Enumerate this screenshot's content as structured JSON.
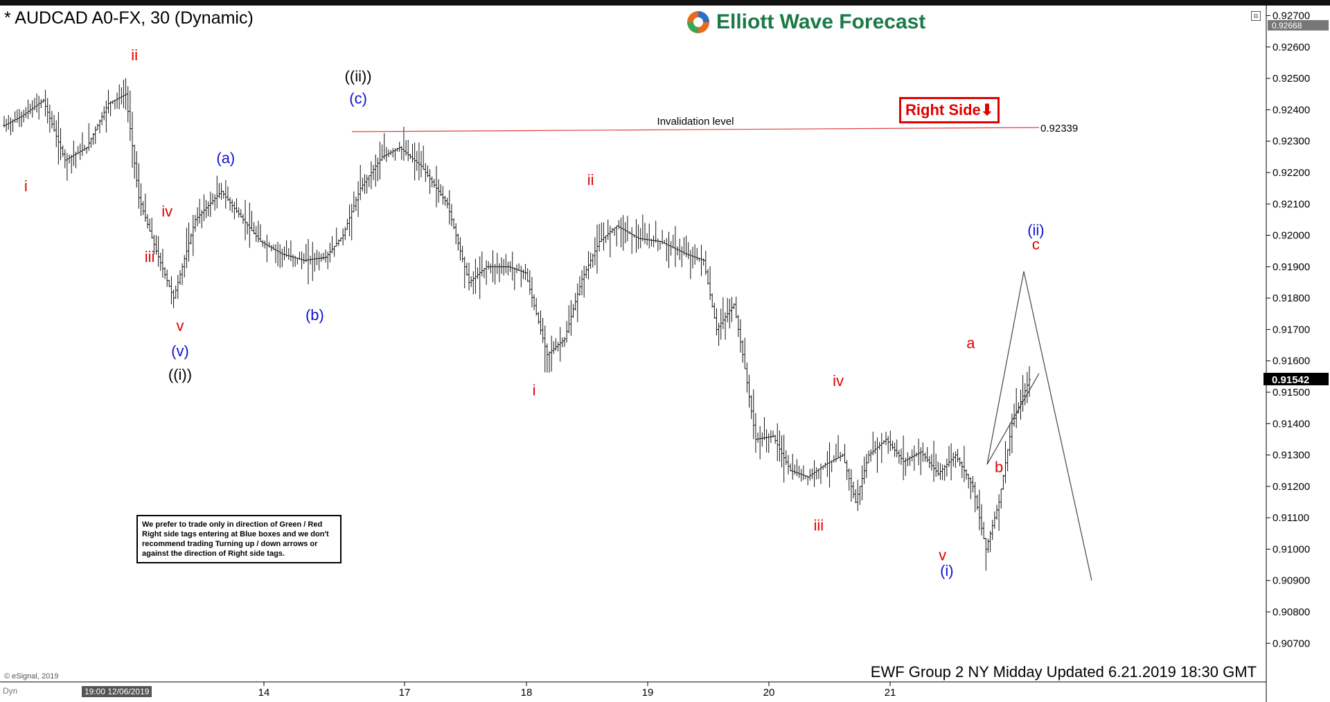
{
  "header": {
    "title": "* AUDCAD A0-FX, 30 (Dynamic)",
    "logo_text": "Elliott Wave Forecast"
  },
  "footer": {
    "updated": "EWF Group 2 NY Midday Updated 6.21.2019 18:30 GMT",
    "esignal": "© eSignal, 2019",
    "dyn": "Dyn",
    "date_chip": "19:00 12/06/2019"
  },
  "note": {
    "text": "We prefer to trade only in direction of Green / Red Right side tags entering at Blue boxes and we don't recommend trading Turning up / down arrows or against the direction of Right side tags."
  },
  "right_side_tag": {
    "label": "Right Side",
    "arrow": "arrow-down-icon",
    "color": "#e00000"
  },
  "colors": {
    "red": "#e00000",
    "blue": "#1010d0",
    "black": "#000000",
    "invalidation_line": "#e04040",
    "brand_green": "#1a7a45"
  },
  "chart_data": {
    "type": "bar",
    "symbol": "AUDCAD",
    "timeframe": "30",
    "ylim": [
      0.9063,
      0.9271
    ],
    "y_ticks": [
      "0.92700",
      "0.92600",
      "0.92500",
      "0.92400",
      "0.92300",
      "0.92200",
      "0.92100",
      "0.92000",
      "0.91900",
      "0.91800",
      "0.91700",
      "0.91600",
      "0.91500",
      "0.91400",
      "0.91300",
      "0.91200",
      "0.91100",
      "0.91000",
      "0.90900",
      "0.90800",
      "0.90700"
    ],
    "x_ticks": [
      "14",
      "17",
      "18",
      "19",
      "20",
      "21"
    ],
    "current_price": "0.91542",
    "top_price": "0.92668",
    "invalidation": {
      "label": "Invalidation level",
      "value": "0.92339"
    },
    "ohlc_anchors": [
      [
        0,
        0.9235
      ],
      [
        8,
        0.9238
      ],
      [
        18,
        0.9243
      ],
      [
        28,
        0.9224
      ],
      [
        38,
        0.9228
      ],
      [
        48,
        0.9242
      ],
      [
        56,
        0.9245
      ],
      [
        62,
        0.9212
      ],
      [
        70,
        0.9195
      ],
      [
        78,
        0.918
      ],
      [
        82,
        0.919
      ],
      [
        88,
        0.9205
      ],
      [
        100,
        0.9214
      ],
      [
        110,
        0.9205
      ],
      [
        118,
        0.9198
      ],
      [
        128,
        0.9194
      ],
      [
        138,
        0.9192
      ],
      [
        148,
        0.9193
      ],
      [
        156,
        0.92
      ],
      [
        164,
        0.9215
      ],
      [
        174,
        0.9225
      ],
      [
        182,
        0.9228
      ],
      [
        192,
        0.9222
      ],
      [
        204,
        0.921
      ],
      [
        214,
        0.9185
      ],
      [
        222,
        0.919
      ],
      [
        232,
        0.919
      ],
      [
        240,
        0.9188
      ],
      [
        250,
        0.9162
      ],
      [
        258,
        0.9167
      ],
      [
        266,
        0.9186
      ],
      [
        274,
        0.9198
      ],
      [
        282,
        0.9203
      ],
      [
        292,
        0.9199
      ],
      [
        302,
        0.9198
      ],
      [
        314,
        0.9194
      ],
      [
        322,
        0.9192
      ],
      [
        328,
        0.917
      ],
      [
        336,
        0.9178
      ],
      [
        340,
        0.9162
      ],
      [
        346,
        0.9135
      ],
      [
        354,
        0.9136
      ],
      [
        362,
        0.9125
      ],
      [
        370,
        0.9123
      ],
      [
        378,
        0.9127
      ],
      [
        386,
        0.913
      ],
      [
        392,
        0.9115
      ],
      [
        398,
        0.913
      ],
      [
        406,
        0.9135
      ],
      [
        414,
        0.9128
      ],
      [
        422,
        0.9131
      ],
      [
        430,
        0.9124
      ],
      [
        438,
        0.913
      ],
      [
        446,
        0.912
      ],
      [
        452,
        0.91
      ],
      [
        458,
        0.9115
      ],
      [
        464,
        0.914
      ],
      [
        472,
        0.9154
      ]
    ],
    "bar_count": 473,
    "projection": [
      {
        "label": "b",
        "value": 0.9127
      },
      {
        "label": "c",
        "value": 0.91885
      },
      {
        "label": "",
        "value": 0.909
      }
    ],
    "wave_labels": [
      {
        "text": "ii",
        "color": "red",
        "price": 0.92558,
        "bar": 60
      },
      {
        "text": "i",
        "color": "red",
        "price": 0.9214,
        "bar": 10
      },
      {
        "text": "iv",
        "color": "red",
        "price": 0.9206,
        "bar": 75
      },
      {
        "text": "iii",
        "color": "red",
        "price": 0.91915,
        "bar": 67
      },
      {
        "text": "v",
        "color": "red",
        "price": 0.91695,
        "bar": 81
      },
      {
        "text": "(v)",
        "color": "blue",
        "price": 0.91615,
        "bar": 81
      },
      {
        "text": "((i))",
        "color": "black",
        "price": 0.9154,
        "bar": 81
      },
      {
        "text": "(a)",
        "color": "blue",
        "price": 0.9223,
        "bar": 102
      },
      {
        "text": "(b)",
        "color": "blue",
        "price": 0.9173,
        "bar": 143
      },
      {
        "text": "((ii))",
        "color": "black",
        "price": 0.9249,
        "bar": 163
      },
      {
        "text": "(c)",
        "color": "blue",
        "price": 0.9242,
        "bar": 163
      },
      {
        "text": "i",
        "color": "red",
        "price": 0.9149,
        "bar": 244
      },
      {
        "text": "ii",
        "color": "red",
        "price": 0.9216,
        "bar": 270
      },
      {
        "text": "iv",
        "color": "red",
        "price": 0.9152,
        "bar": 384
      },
      {
        "text": "iii",
        "color": "red",
        "price": 0.9106,
        "bar": 375
      },
      {
        "text": "v",
        "color": "red",
        "price": 0.90965,
        "bar": 432
      },
      {
        "text": "(i)",
        "color": "blue",
        "price": 0.90915,
        "bar": 434
      },
      {
        "text": "a",
        "color": "red",
        "price": 0.9164,
        "bar": 445
      },
      {
        "text": "b",
        "color": "red",
        "price": 0.91245,
        "bar": 458
      },
      {
        "text": "c",
        "color": "red",
        "price": 0.91955,
        "bar": 475
      },
      {
        "text": "(ii)",
        "color": "blue",
        "price": 0.92,
        "bar": 475
      }
    ]
  }
}
